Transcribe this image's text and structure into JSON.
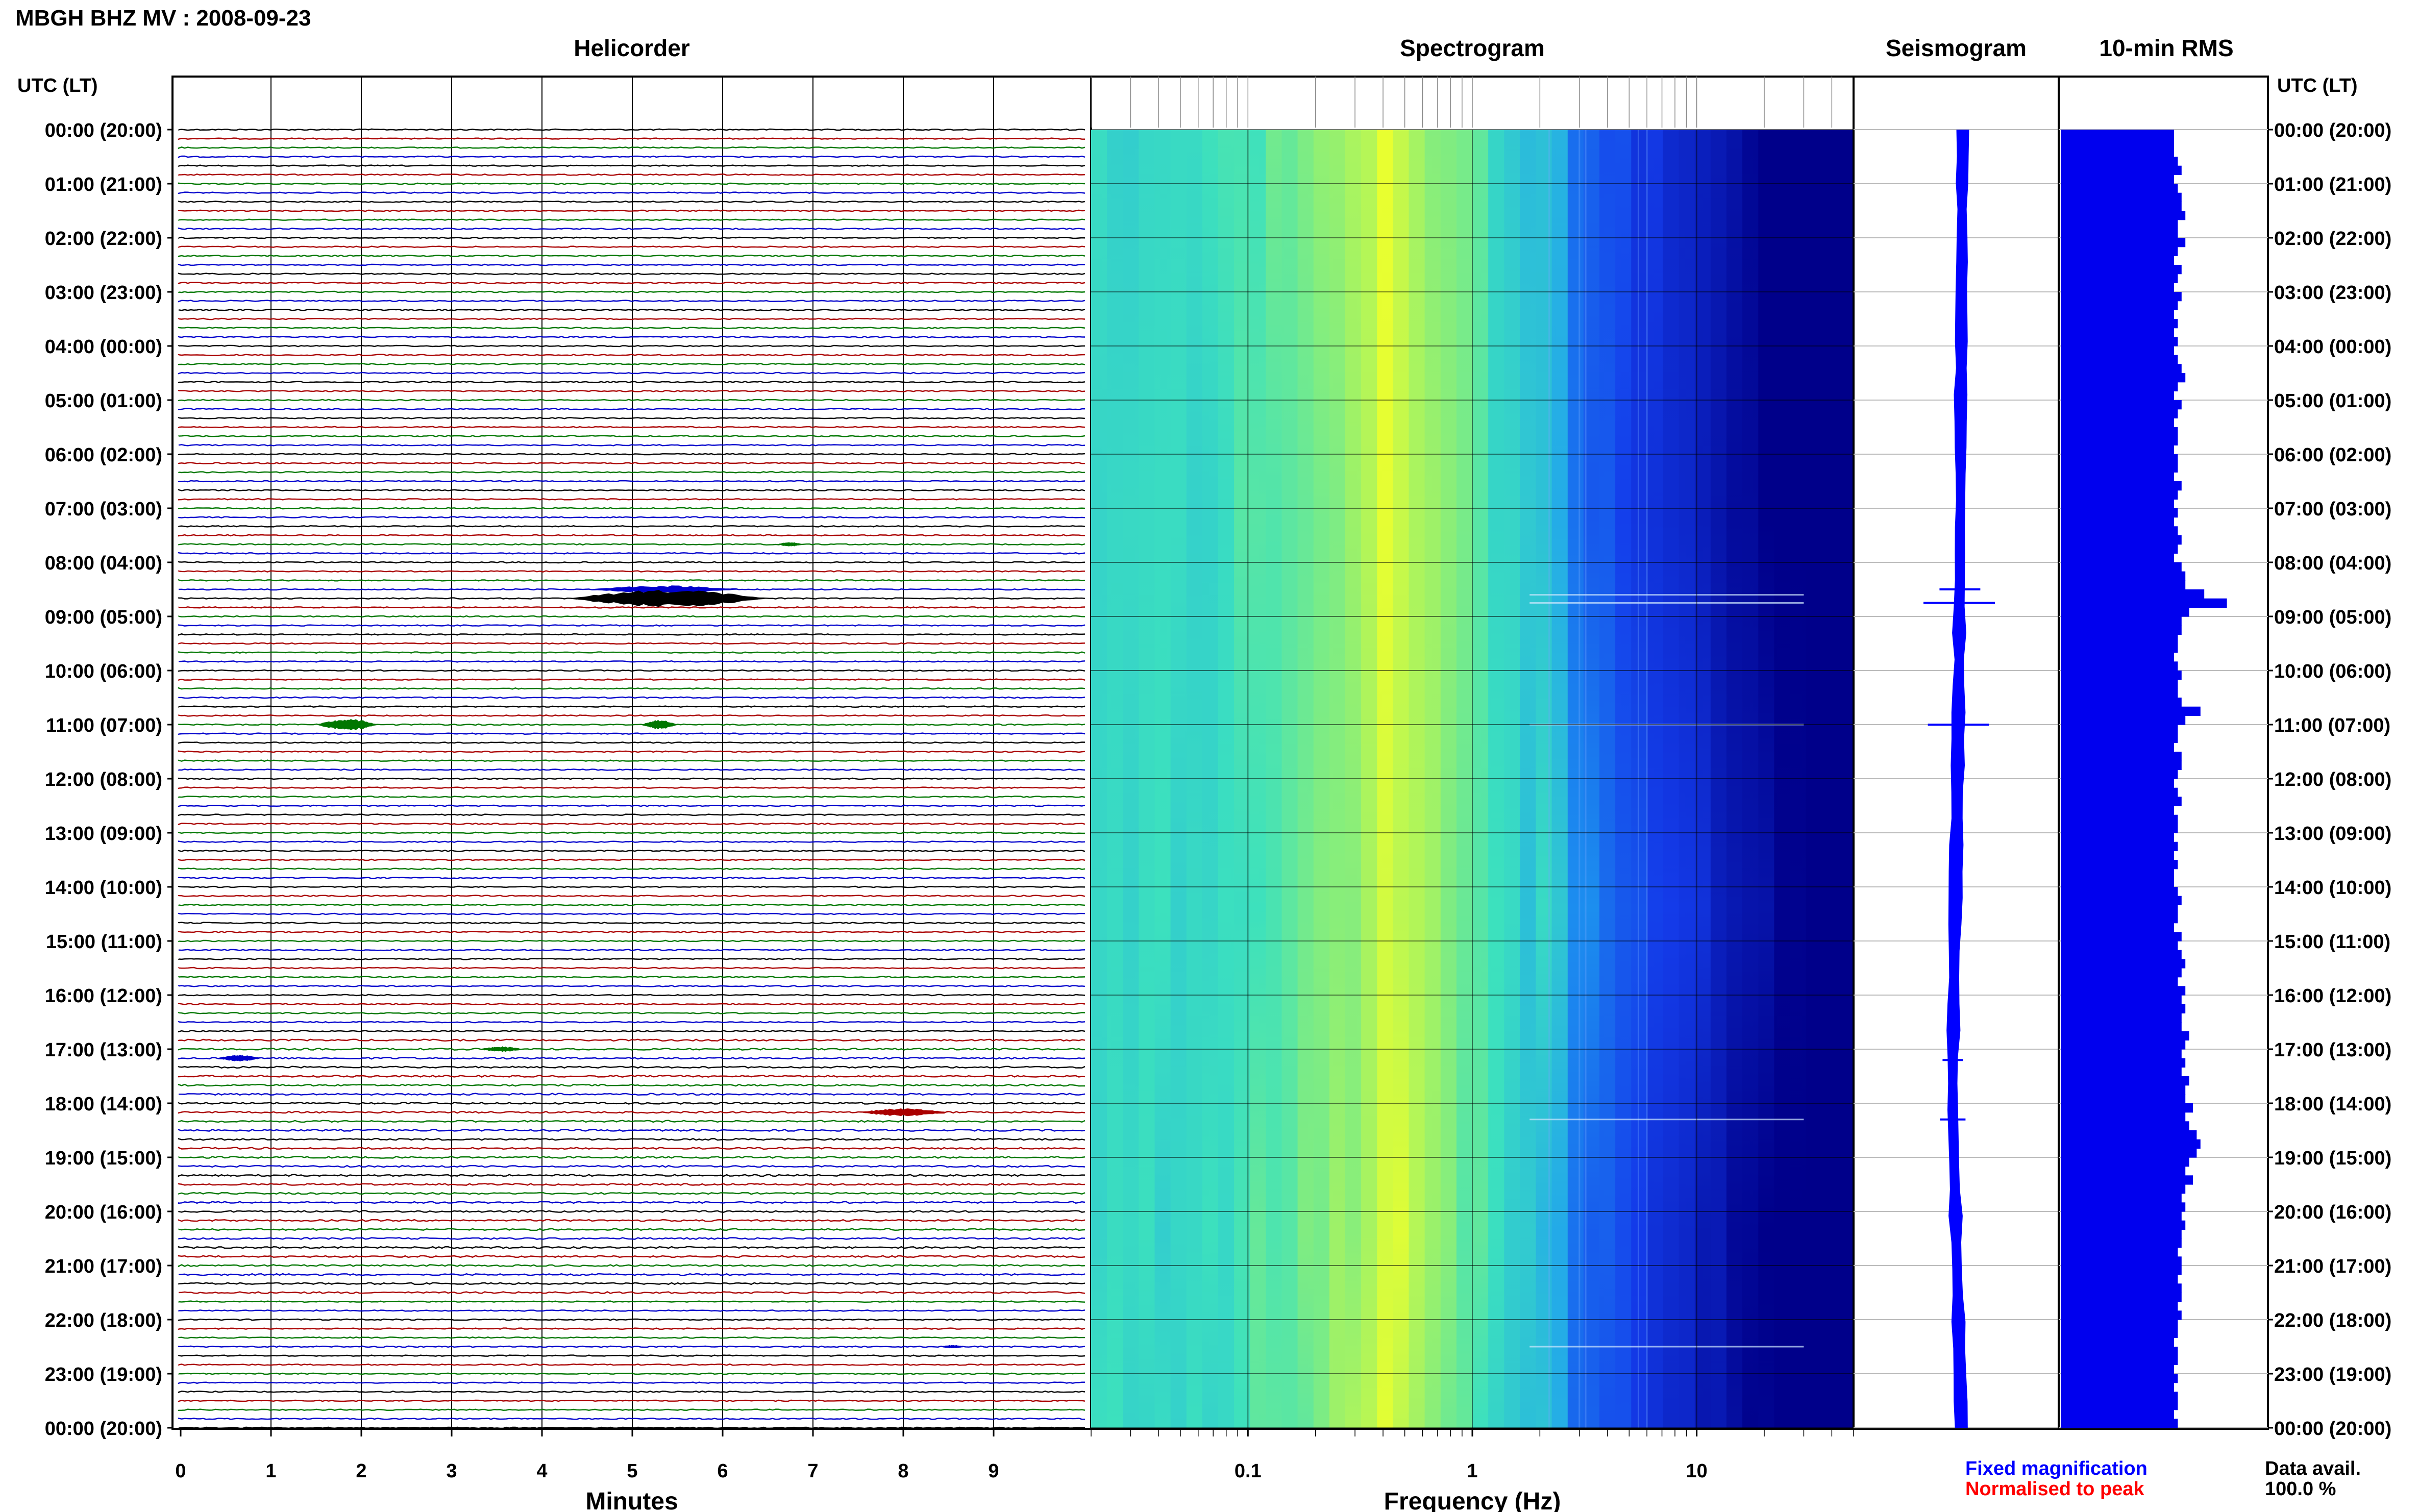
{
  "header": {
    "title": "MBGH BHZ MV : 2008-09-23"
  },
  "panels": {
    "helicorder": "Helicorder",
    "spectrogram": "Spectrogram",
    "seismogram": "Seismogram",
    "rms": "10-min RMS"
  },
  "axis": {
    "utc_left": "UTC (LT)",
    "utc_right": "UTC (LT)",
    "minutes_label": "Minutes",
    "frequency_label": "Frequency (Hz)"
  },
  "legend": {
    "fixed": "Fixed magnification",
    "normalised": "Normalised to peak",
    "fixed_color": "#0000ff",
    "normalised_color": "#ff0000"
  },
  "data_availability": {
    "label": "Data avail.",
    "value": "100.0 %"
  },
  "colors": {
    "trace_cycle": [
      "#000000",
      "#aa0000",
      "#007700",
      "#0000cc"
    ],
    "rms_bar": "#0000ee",
    "seismogram": "#0000ff",
    "spec_low": "#00008a",
    "spec_high": "#e8ff30"
  },
  "chart_data": {
    "type": "helicorder",
    "time_labels": [
      "00:00 (20:00)",
      "01:00 (21:00)",
      "02:00 (22:00)",
      "03:00 (23:00)",
      "04:00 (00:00)",
      "05:00 (01:00)",
      "06:00 (02:00)",
      "07:00 (03:00)",
      "08:00 (04:00)",
      "09:00 (05:00)",
      "10:00 (06:00)",
      "11:00 (07:00)",
      "12:00 (08:00)",
      "13:00 (09:00)",
      "14:00 (10:00)",
      "15:00 (11:00)",
      "16:00 (12:00)",
      "17:00 (13:00)",
      "18:00 (14:00)",
      "19:00 (15:00)",
      "20:00 (16:00)",
      "21:00 (17:00)",
      "22:00 (18:00)",
      "23:00 (19:00)",
      "00:00 (20:00)"
    ],
    "minutes_ticks": [
      "0",
      "1",
      "2",
      "3",
      "4",
      "5",
      "6",
      "7",
      "8",
      "9"
    ],
    "minutes_range": [
      0,
      10
    ],
    "frequency_ticks": [
      0.1,
      1,
      10
    ],
    "frequency_tick_labels": [
      "0.1",
      "1",
      "10"
    ],
    "frequency_range_hz": [
      0.02,
      50
    ],
    "frequency_scale": "log",
    "traces_per_hour": 6,
    "events": [
      {
        "hour": 8.5,
        "minute_start": 4.5,
        "minute_end": 6.2,
        "amplitude": 0.35
      },
      {
        "hour": 8.67,
        "minute_start": 4.3,
        "minute_end": 6.5,
        "amplitude": 0.8
      },
      {
        "hour": 11.0,
        "minute_start": 1.5,
        "minute_end": 2.2,
        "amplitude": 0.5
      },
      {
        "hour": 11.0,
        "minute_start": 5.1,
        "minute_end": 5.5,
        "amplitude": 0.4
      },
      {
        "hour": 7.67,
        "minute_start": 6.6,
        "minute_end": 6.9,
        "amplitude": 0.2
      },
      {
        "hour": 17.0,
        "minute_start": 3.3,
        "minute_end": 3.8,
        "amplitude": 0.25
      },
      {
        "hour": 17.17,
        "minute_start": 0.4,
        "minute_end": 0.9,
        "amplitude": 0.3
      },
      {
        "hour": 18.17,
        "minute_start": 7.5,
        "minute_end": 8.5,
        "amplitude": 0.35
      },
      {
        "hour": 22.5,
        "minute_start": 8.4,
        "minute_end": 8.7,
        "amplitude": 0.15
      }
    ],
    "rms_values": [
      0.3,
      0.3,
      0.3,
      0.31,
      0.32,
      0.3,
      0.31,
      0.32,
      0.32,
      0.33,
      0.31,
      0.31,
      0.33,
      0.31,
      0.3,
      0.32,
      0.31,
      0.3,
      0.32,
      0.31,
      0.3,
      0.31,
      0.3,
      0.31,
      0.3,
      0.31,
      0.32,
      0.33,
      0.31,
      0.3,
      0.32,
      0.31,
      0.3,
      0.31,
      0.31,
      0.3,
      0.31,
      0.31,
      0.3,
      0.32,
      0.31,
      0.3,
      0.31,
      0.3,
      0.31,
      0.32,
      0.31,
      0.3,
      0.32,
      0.33,
      0.33,
      0.38,
      0.44,
      0.34,
      0.32,
      0.32,
      0.31,
      0.31,
      0.3,
      0.31,
      0.32,
      0.31,
      0.31,
      0.32,
      0.37,
      0.33,
      0.31,
      0.31,
      0.3,
      0.32,
      0.32,
      0.31,
      0.3,
      0.31,
      0.32,
      0.3,
      0.31,
      0.31,
      0.3,
      0.31,
      0.3,
      0.31,
      0.3,
      0.3,
      0.31,
      0.32,
      0.31,
      0.31,
      0.3,
      0.32,
      0.31,
      0.32,
      0.33,
      0.32,
      0.31,
      0.33,
      0.32,
      0.33,
      0.32,
      0.32,
      0.34,
      0.33,
      0.32,
      0.33,
      0.32,
      0.34,
      0.33,
      0.33,
      0.35,
      0.33,
      0.34,
      0.36,
      0.37,
      0.36,
      0.34,
      0.33,
      0.35,
      0.33,
      0.32,
      0.33,
      0.32,
      0.33,
      0.32,
      0.32,
      0.31,
      0.32,
      0.32,
      0.31,
      0.32,
      0.32,
      0.31,
      0.32,
      0.31,
      0.31,
      0.3,
      0.31,
      0.31,
      0.3,
      0.31,
      0.3,
      0.31,
      0.31,
      0.3,
      0.31
    ],
    "seismogram_offsets": [
      0.05,
      0.05,
      0.04,
      0.04,
      0.04,
      0.04,
      0.03,
      0.03,
      0.03,
      0.03,
      0.02,
      0.02,
      0.02,
      0.02,
      0.02,
      0.01,
      0.01,
      0.01,
      0.0,
      0.0,
      0.0,
      -0.01,
      -0.01,
      -0.02,
      -0.02,
      -0.03,
      -0.03,
      -0.04,
      -0.05,
      -0.05,
      -0.06,
      -0.07,
      -0.07,
      -0.08,
      -0.08,
      -0.09,
      -0.09,
      -0.09,
      -0.08,
      -0.07,
      -0.06,
      -0.05,
      -0.04,
      -0.03,
      -0.02,
      -0.01,
      0.0,
      0.01,
      0.02,
      0.03
    ],
    "spectrogram_lines_hz": [
      2.2,
      3.0,
      3.2,
      5.5,
      6.0
    ]
  }
}
